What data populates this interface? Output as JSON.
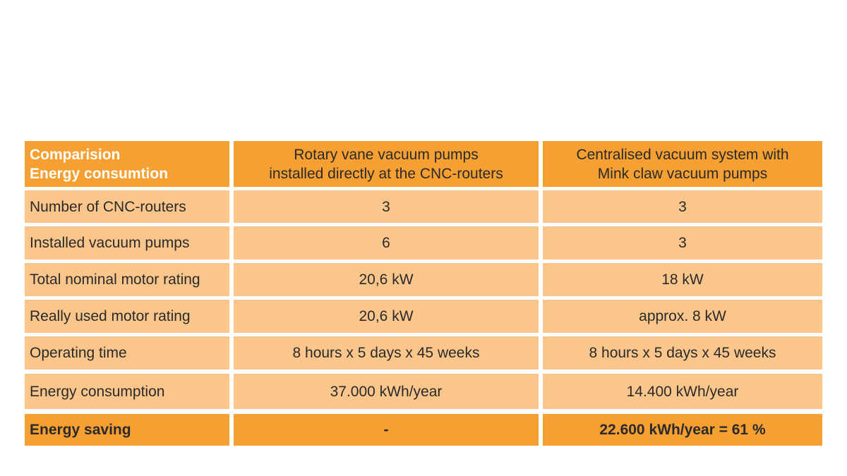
{
  "table": {
    "header": [
      [
        "Comparision",
        "Energy consumtion"
      ],
      [
        "Rotary vane vacuum pumps",
        "installed directly at the CNC-routers"
      ],
      [
        "Centralised vacuum system with",
        "Mink claw vacuum pumps"
      ]
    ],
    "rows": [
      [
        "Number of CNC-routers",
        "3",
        "3"
      ],
      [
        "Installed vacuum pumps",
        "6",
        "3"
      ],
      [
        "Total nominal motor rating",
        "20,6 kW",
        "18 kW"
      ],
      [
        "Really used motor rating",
        "20,6 kW",
        "approx. 8 kW"
      ],
      [
        "Operating time",
        "8 hours x 5 days x 45 weeks",
        "8 hours x 5 days x 45 weeks"
      ],
      [
        "Energy consumption",
        "37.000 kWh/year",
        "14.400 kWh/year"
      ],
      [
        "Energy saving",
        "-",
        "22.600 kWh/year = 61 %"
      ]
    ]
  }
}
